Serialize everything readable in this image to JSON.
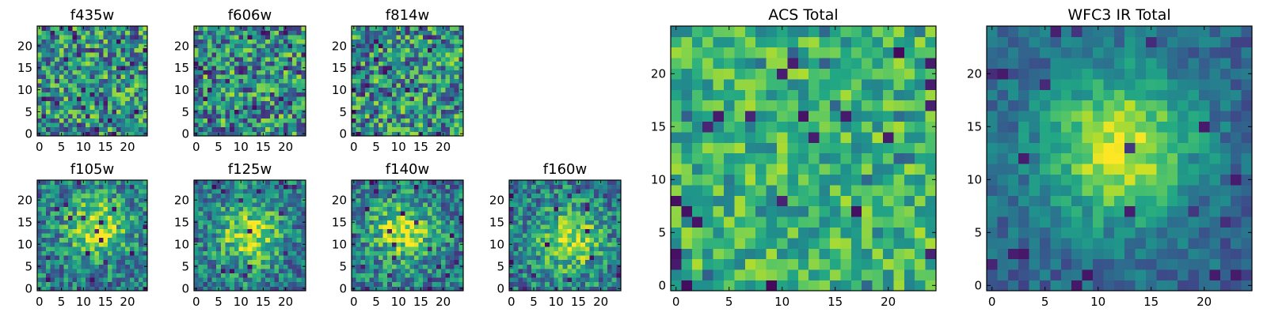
{
  "chart_data": [
    {
      "type": "heatmap",
      "title": "f435w",
      "xlabel": "",
      "ylabel": "",
      "xlim": [
        -0.5,
        24.5
      ],
      "ylim": [
        -0.5,
        24.5
      ],
      "xticks": [
        0,
        5,
        10,
        15,
        20
      ],
      "yticks": [
        0,
        5,
        10,
        15,
        20
      ],
      "grid_size": [
        25,
        25
      ],
      "colormap": "viridis",
      "value_range": [
        0,
        1
      ],
      "pattern": "uniform noise",
      "seed": 11
    },
    {
      "type": "heatmap",
      "title": "f606w",
      "xlabel": "",
      "ylabel": "",
      "xlim": [
        -0.5,
        24.5
      ],
      "ylim": [
        -0.5,
        24.5
      ],
      "xticks": [
        0,
        5,
        10,
        15,
        20
      ],
      "yticks": [
        0,
        5,
        10,
        15,
        20
      ],
      "grid_size": [
        25,
        25
      ],
      "colormap": "viridis",
      "value_range": [
        0,
        1
      ],
      "pattern": "uniform noise",
      "seed": 23
    },
    {
      "type": "heatmap",
      "title": "f814w",
      "xlabel": "",
      "ylabel": "",
      "xlim": [
        -0.5,
        24.5
      ],
      "ylim": [
        -0.5,
        24.5
      ],
      "xticks": [
        0,
        5,
        10,
        15,
        20
      ],
      "yticks": [
        0,
        5,
        10,
        15,
        20
      ],
      "grid_size": [
        25,
        25
      ],
      "colormap": "viridis",
      "value_range": [
        0,
        1
      ],
      "pattern": "uniform noise",
      "seed": 37
    },
    {
      "type": "heatmap",
      "title": "f105w",
      "xlabel": "",
      "ylabel": "",
      "xlim": [
        -0.5,
        24.5
      ],
      "ylim": [
        -0.5,
        24.5
      ],
      "xticks": [
        0,
        5,
        10,
        15,
        20
      ],
      "yticks": [
        0,
        5,
        10,
        15,
        20
      ],
      "grid_size": [
        25,
        25
      ],
      "colormap": "viridis",
      "value_range": [
        0,
        1
      ],
      "pattern": "noisy central blob",
      "blob_center": [
        13,
        14
      ],
      "seed": 41
    },
    {
      "type": "heatmap",
      "title": "f125w",
      "xlabel": "",
      "ylabel": "",
      "xlim": [
        -0.5,
        24.5
      ],
      "ylim": [
        -0.5,
        24.5
      ],
      "xticks": [
        0,
        5,
        10,
        15,
        20
      ],
      "yticks": [
        0,
        5,
        10,
        15,
        20
      ],
      "grid_size": [
        25,
        25
      ],
      "colormap": "viridis",
      "value_range": [
        0,
        1
      ],
      "pattern": "noisy central blob",
      "blob_center": [
        12,
        12
      ],
      "seed": 53
    },
    {
      "type": "heatmap",
      "title": "f140w",
      "xlabel": "",
      "ylabel": "",
      "xlim": [
        -0.5,
        24.5
      ],
      "ylim": [
        -0.5,
        24.5
      ],
      "xticks": [
        0,
        5,
        10,
        15,
        20
      ],
      "yticks": [
        0,
        5,
        10,
        15,
        20
      ],
      "grid_size": [
        25,
        25
      ],
      "colormap": "viridis",
      "value_range": [
        0,
        1
      ],
      "pattern": "noisy central blob",
      "blob_center": [
        11,
        13
      ],
      "seed": 67
    },
    {
      "type": "heatmap",
      "title": "f160w",
      "xlabel": "",
      "ylabel": "",
      "xlim": [
        -0.5,
        24.5
      ],
      "ylim": [
        -0.5,
        24.5
      ],
      "xticks": [
        0,
        5,
        10,
        15,
        20
      ],
      "yticks": [
        0,
        5,
        10,
        15,
        20
      ],
      "grid_size": [
        25,
        25
      ],
      "colormap": "viridis",
      "value_range": [
        0,
        1
      ],
      "pattern": "noisy central blob",
      "blob_center": [
        13,
        11
      ],
      "seed": 79
    },
    {
      "type": "heatmap",
      "title": "ACS Total",
      "xlabel": "",
      "ylabel": "",
      "xlim": [
        -0.5,
        24.5
      ],
      "ylim": [
        -0.5,
        24.5
      ],
      "xticks": [
        0,
        5,
        10,
        15,
        20
      ],
      "yticks": [
        0,
        5,
        10,
        15,
        20
      ],
      "grid_size": [
        25,
        25
      ],
      "colormap": "viridis",
      "value_range": [
        0,
        1
      ],
      "pattern": "uniform noise, bright",
      "seed": 97
    },
    {
      "type": "heatmap",
      "title": "WFC3 IR Total",
      "xlabel": "",
      "ylabel": "",
      "xlim": [
        -0.5,
        24.5
      ],
      "ylim": [
        -0.5,
        24.5
      ],
      "xticks": [
        0,
        5,
        10,
        15,
        20
      ],
      "yticks": [
        0,
        5,
        10,
        15,
        20
      ],
      "grid_size": [
        25,
        25
      ],
      "colormap": "viridis",
      "value_range": [
        0,
        1
      ],
      "pattern": "smooth central blob",
      "blob_center": [
        12,
        13
      ],
      "seed": 113
    }
  ]
}
